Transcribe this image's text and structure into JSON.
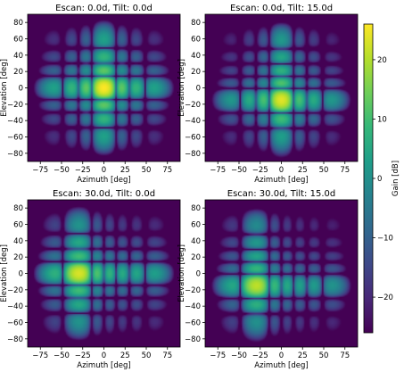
{
  "chart_data": [
    {
      "type": "heatmap",
      "title": "Escan: 0.0d, Tilt: 0.0d",
      "xlabel": "Azimuth [deg]",
      "ylabel": "Elevation [deg]",
      "xlim": [
        -90,
        90
      ],
      "ylim": [
        -90,
        90
      ],
      "xticks": [
        -75,
        -50,
        -25,
        0,
        25,
        50,
        75
      ],
      "yticks": [
        -80,
        -60,
        -40,
        -20,
        0,
        20,
        40,
        60,
        80
      ],
      "beam_center": {
        "azimuth": 0,
        "elevation": 0
      },
      "peak_gain_db": 26
    },
    {
      "type": "heatmap",
      "title": "Escan: 0.0d, Tilt: 15.0d",
      "xlabel": "Azimuth [deg]",
      "ylabel": "Elevation [deg]",
      "xlim": [
        -90,
        90
      ],
      "ylim": [
        -90,
        90
      ],
      "xticks": [
        -75,
        -50,
        -25,
        0,
        25,
        50,
        75
      ],
      "yticks": [
        -80,
        -60,
        -40,
        -20,
        0,
        20,
        40,
        60,
        80
      ],
      "beam_center": {
        "azimuth": 0,
        "elevation": -15
      },
      "peak_gain_db": 24
    },
    {
      "type": "heatmap",
      "title": "Escan: 30.0d, Tilt: 0.0d",
      "xlabel": "Azimuth [deg]",
      "ylabel": "Elevation [deg]",
      "xlim": [
        -90,
        90
      ],
      "ylim": [
        -90,
        90
      ],
      "xticks": [
        -75,
        -50,
        -25,
        0,
        25,
        50,
        75
      ],
      "yticks": [
        -80,
        -60,
        -40,
        -20,
        0,
        20,
        40,
        60,
        80
      ],
      "beam_center": {
        "azimuth": -30,
        "elevation": 0
      },
      "peak_gain_db": 24
    },
    {
      "type": "heatmap",
      "title": "Escan: 30.0d, Tilt: 15.0d",
      "xlabel": "Azimuth [deg]",
      "ylabel": "Elevation [deg]",
      "xlim": [
        -90,
        90
      ],
      "ylim": [
        -90,
        90
      ],
      "xticks": [
        -75,
        -50,
        -25,
        0,
        25,
        50,
        75
      ],
      "yticks": [
        -80,
        -60,
        -40,
        -20,
        0,
        20,
        40,
        60,
        80
      ],
      "beam_center": {
        "azimuth": -30,
        "elevation": -15
      },
      "peak_gain_db": 22
    }
  ],
  "colorbar": {
    "label": "Gain [dB]",
    "ticks": [
      20,
      10,
      0,
      -10,
      -20
    ],
    "range": [
      -26,
      26
    ],
    "colormap": "viridis",
    "colors": [
      "#440154",
      "#482878",
      "#3e4989",
      "#31688e",
      "#26828e",
      "#1f9e89",
      "#35b779",
      "#6ece58",
      "#b5de2b",
      "#fde725"
    ]
  }
}
